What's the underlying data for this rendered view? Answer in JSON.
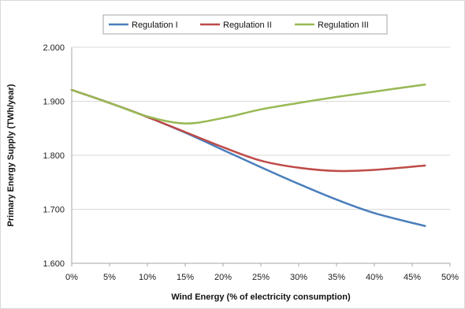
{
  "chart_data": {
    "type": "line",
    "title": "",
    "xlabel": "Wind Energy (% of electricity consumption)",
    "ylabel": "Primary Energy Supply  (TWh/year)",
    "xlim": [
      0,
      50
    ],
    "ylim": [
      1.6,
      2.0
    ],
    "x_ticks": [
      0,
      5,
      10,
      15,
      20,
      25,
      30,
      35,
      40,
      45,
      50
    ],
    "x_tick_labels": [
      "0%",
      "5%",
      "10%",
      "15%",
      "20%",
      "25%",
      "30%",
      "35%",
      "40%",
      "45%",
      "50%"
    ],
    "y_ticks": [
      1.6,
      1.7,
      1.8,
      1.9,
      2.0
    ],
    "y_tick_labels": [
      "1.600",
      "1.700",
      "1.800",
      "1.900",
      "2.000"
    ],
    "grid": "horizontal",
    "legend_position": "top",
    "series": [
      {
        "name": "Regulation I",
        "color": "#4a7ebb",
        "x": [
          0,
          5,
          10,
          15,
          20,
          25,
          30,
          35,
          40,
          46.7
        ],
        "values": [
          1.921,
          1.897,
          1.871,
          1.842,
          1.81,
          1.778,
          1.747,
          1.718,
          1.693,
          1.669
        ]
      },
      {
        "name": "Regulation II",
        "color": "#be4b48",
        "x": [
          0,
          5,
          10,
          15,
          20,
          25,
          30,
          35,
          40,
          46.7
        ],
        "values": [
          1.921,
          1.897,
          1.871,
          1.843,
          1.815,
          1.79,
          1.777,
          1.771,
          1.773,
          1.781
        ]
      },
      {
        "name": "Regulation III",
        "color": "#98b954",
        "x": [
          0,
          5,
          10,
          15,
          20,
          25,
          30,
          35,
          40,
          46.7
        ],
        "values": [
          1.921,
          1.897,
          1.872,
          1.859,
          1.869,
          1.885,
          1.897,
          1.908,
          1.918,
          1.931
        ]
      }
    ]
  }
}
